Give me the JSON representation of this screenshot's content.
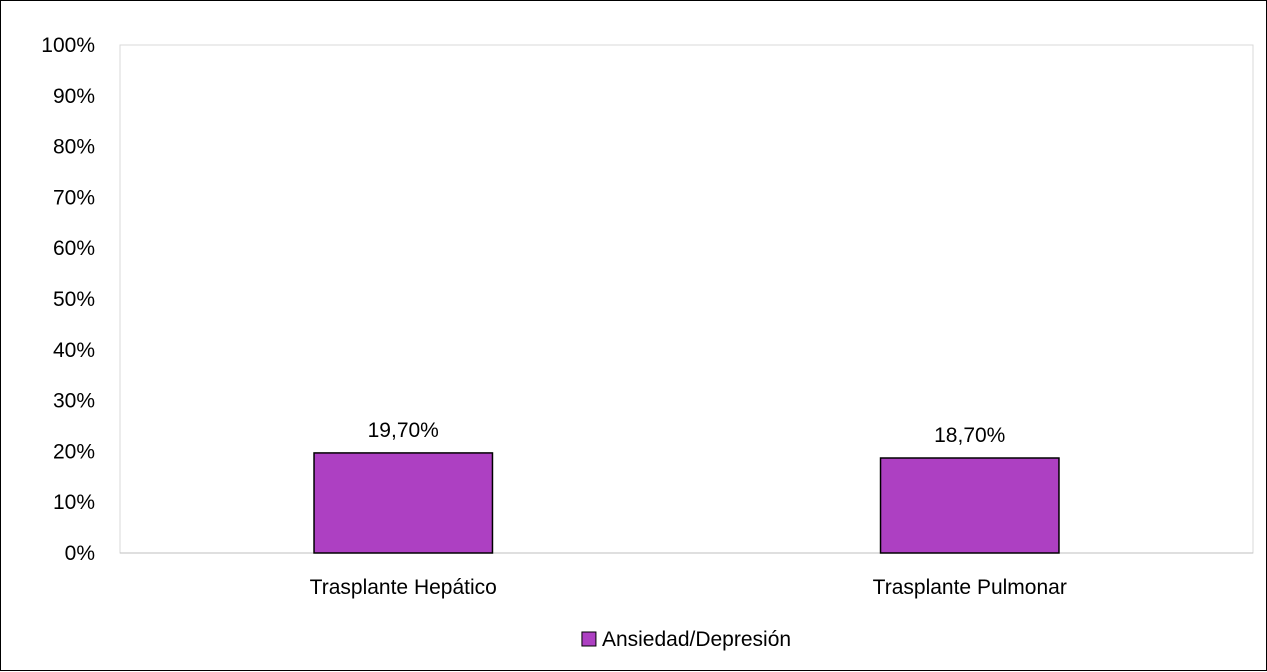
{
  "chart_data": {
    "type": "bar",
    "categories": [
      "Trasplante Hepático",
      "Trasplante Pulmonar"
    ],
    "series": [
      {
        "name": "Ansiedad/Depresión",
        "values": [
          19.7,
          18.7
        ],
        "color": "#ad40c2"
      }
    ],
    "data_labels": [
      "19,70%",
      "18,70%"
    ],
    "yticks": [
      "0%",
      "10%",
      "20%",
      "30%",
      "40%",
      "50%",
      "60%",
      "70%",
      "80%",
      "90%",
      "100%"
    ],
    "ylim": [
      0,
      100
    ],
    "grid": false,
    "legend_position": "bottom"
  }
}
